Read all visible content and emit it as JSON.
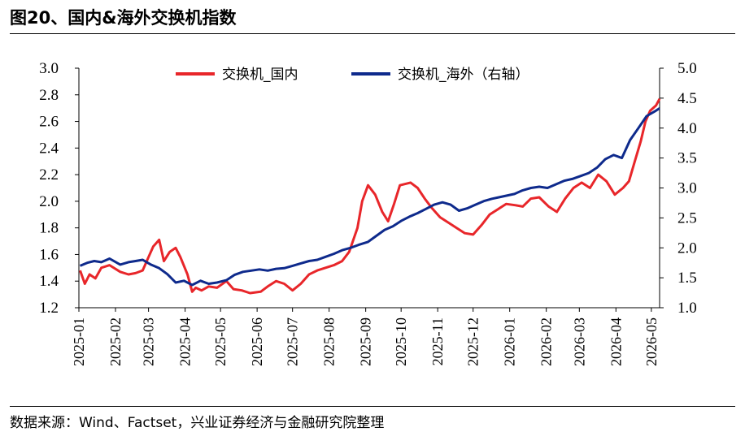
{
  "figure": {
    "title": "图20、国内&海外交换机指数",
    "source": "数据来源：Wind、Factset，兴业证券经济与金融研究院整理"
  },
  "chart_data": {
    "type": "line",
    "x_ticks": [
      "2025-01",
      "2025-02",
      "2025-03",
      "2025-04",
      "2025-05",
      "2025-06",
      "2025-07",
      "2025-08",
      "2025-09",
      "2025-10",
      "2025-11",
      "2025-12",
      "2026-01",
      "2026-02",
      "2026-03",
      "2026-04",
      "2026-05"
    ],
    "x_range": [
      "2025-01-01",
      "2026-05-08"
    ],
    "y_left": {
      "ylim": [
        1.2,
        3.0
      ],
      "ticks": [
        "1.2",
        "1.4",
        "1.6",
        "1.8",
        "2.0",
        "2.2",
        "2.4",
        "2.6",
        "2.8",
        "3.0"
      ]
    },
    "y_right": {
      "ylim": [
        1.0,
        5.0
      ],
      "ticks": [
        "1.0",
        "1.5",
        "2.0",
        "2.5",
        "3.0",
        "3.5",
        "4.0",
        "4.5",
        "5.0"
      ]
    },
    "legend_position": "top",
    "grid": false,
    "series": [
      {
        "name": "交换机_国内",
        "axis": "left",
        "color": "#E8262A",
        "points": [
          [
            "2025-01-02",
            1.48
          ],
          [
            "2025-01-06",
            1.38
          ],
          [
            "2025-01-10",
            1.45
          ],
          [
            "2025-01-15",
            1.42
          ],
          [
            "2025-01-20",
            1.5
          ],
          [
            "2025-01-27",
            1.52
          ],
          [
            "2025-02-05",
            1.47
          ],
          [
            "2025-02-12",
            1.45
          ],
          [
            "2025-02-18",
            1.46
          ],
          [
            "2025-02-24",
            1.48
          ],
          [
            "2025-03-01",
            1.58
          ],
          [
            "2025-03-05",
            1.66
          ],
          [
            "2025-03-10",
            1.71
          ],
          [
            "2025-03-14",
            1.55
          ],
          [
            "2025-03-19",
            1.62
          ],
          [
            "2025-03-24",
            1.65
          ],
          [
            "2025-03-28",
            1.58
          ],
          [
            "2025-04-03",
            1.45
          ],
          [
            "2025-04-07",
            1.32
          ],
          [
            "2025-04-10",
            1.35
          ],
          [
            "2025-04-15",
            1.33
          ],
          [
            "2025-04-21",
            1.36
          ],
          [
            "2025-04-28",
            1.35
          ],
          [
            "2025-05-06",
            1.4
          ],
          [
            "2025-05-12",
            1.34
          ],
          [
            "2025-05-19",
            1.33
          ],
          [
            "2025-05-26",
            1.31
          ],
          [
            "2025-06-04",
            1.32
          ],
          [
            "2025-06-10",
            1.36
          ],
          [
            "2025-06-17",
            1.4
          ],
          [
            "2025-06-24",
            1.38
          ],
          [
            "2025-07-01",
            1.33
          ],
          [
            "2025-07-08",
            1.38
          ],
          [
            "2025-07-15",
            1.45
          ],
          [
            "2025-07-22",
            1.48
          ],
          [
            "2025-07-29",
            1.5
          ],
          [
            "2025-08-05",
            1.52
          ],
          [
            "2025-08-12",
            1.55
          ],
          [
            "2025-08-18",
            1.62
          ],
          [
            "2025-08-25",
            1.8
          ],
          [
            "2025-08-29",
            2.0
          ],
          [
            "2025-09-03",
            2.12
          ],
          [
            "2025-09-09",
            2.05
          ],
          [
            "2025-09-15",
            1.92
          ],
          [
            "2025-09-20",
            1.85
          ],
          [
            "2025-09-25",
            1.98
          ],
          [
            "2025-09-30",
            2.12
          ],
          [
            "2025-10-09",
            2.14
          ],
          [
            "2025-10-15",
            2.1
          ],
          [
            "2025-10-21",
            2.02
          ],
          [
            "2025-10-27",
            1.95
          ],
          [
            "2025-11-03",
            1.88
          ],
          [
            "2025-11-10",
            1.84
          ],
          [
            "2025-11-17",
            1.8
          ],
          [
            "2025-11-24",
            1.76
          ],
          [
            "2025-12-01",
            1.75
          ],
          [
            "2025-12-08",
            1.82
          ],
          [
            "2025-12-15",
            1.9
          ],
          [
            "2025-12-22",
            1.94
          ],
          [
            "2025-12-29",
            1.98
          ],
          [
            "2026-01-06",
            1.97
          ],
          [
            "2026-01-12",
            1.96
          ],
          [
            "2026-01-19",
            2.02
          ],
          [
            "2026-01-26",
            2.03
          ],
          [
            "2026-02-03",
            1.96
          ],
          [
            "2026-02-10",
            1.92
          ],
          [
            "2026-02-17",
            2.02
          ],
          [
            "2026-02-24",
            2.1
          ],
          [
            "2026-03-03",
            2.14
          ],
          [
            "2026-03-10",
            2.1
          ],
          [
            "2026-03-17",
            2.2
          ],
          [
            "2026-03-24",
            2.15
          ],
          [
            "2026-03-31",
            2.05
          ],
          [
            "2026-04-07",
            2.1
          ],
          [
            "2026-04-12",
            2.15
          ],
          [
            "2026-04-17",
            2.3
          ],
          [
            "2026-04-22",
            2.45
          ],
          [
            "2026-04-26",
            2.6
          ],
          [
            "2026-04-30",
            2.68
          ],
          [
            "2026-05-05",
            2.72
          ],
          [
            "2026-05-08",
            2.77
          ]
        ]
      },
      {
        "name": "交换机_海外（右轴）",
        "axis": "right",
        "color": "#0E2A8C",
        "points": [
          [
            "2025-01-02",
            1.7
          ],
          [
            "2025-01-08",
            1.75
          ],
          [
            "2025-01-14",
            1.78
          ],
          [
            "2025-01-20",
            1.76
          ],
          [
            "2025-01-27",
            1.82
          ],
          [
            "2025-02-05",
            1.72
          ],
          [
            "2025-02-12",
            1.76
          ],
          [
            "2025-02-18",
            1.78
          ],
          [
            "2025-02-24",
            1.8
          ],
          [
            "2025-03-03",
            1.72
          ],
          [
            "2025-03-10",
            1.66
          ],
          [
            "2025-03-17",
            1.56
          ],
          [
            "2025-03-24",
            1.42
          ],
          [
            "2025-03-31",
            1.45
          ],
          [
            "2025-04-07",
            1.38
          ],
          [
            "2025-04-14",
            1.45
          ],
          [
            "2025-04-21",
            1.4
          ],
          [
            "2025-04-28",
            1.42
          ],
          [
            "2025-05-06",
            1.46
          ],
          [
            "2025-05-13",
            1.55
          ],
          [
            "2025-05-20",
            1.6
          ],
          [
            "2025-05-27",
            1.62
          ],
          [
            "2025-06-03",
            1.64
          ],
          [
            "2025-06-10",
            1.62
          ],
          [
            "2025-06-17",
            1.65
          ],
          [
            "2025-06-24",
            1.66
          ],
          [
            "2025-07-01",
            1.7
          ],
          [
            "2025-07-08",
            1.74
          ],
          [
            "2025-07-15",
            1.78
          ],
          [
            "2025-07-22",
            1.8
          ],
          [
            "2025-07-29",
            1.85
          ],
          [
            "2025-08-05",
            1.9
          ],
          [
            "2025-08-12",
            1.96
          ],
          [
            "2025-08-19",
            2.0
          ],
          [
            "2025-08-26",
            2.05
          ],
          [
            "2025-09-03",
            2.1
          ],
          [
            "2025-09-10",
            2.2
          ],
          [
            "2025-09-17",
            2.3
          ],
          [
            "2025-09-24",
            2.36
          ],
          [
            "2025-10-01",
            2.45
          ],
          [
            "2025-10-08",
            2.52
          ],
          [
            "2025-10-15",
            2.58
          ],
          [
            "2025-10-22",
            2.65
          ],
          [
            "2025-10-29",
            2.72
          ],
          [
            "2025-11-05",
            2.76
          ],
          [
            "2025-11-12",
            2.72
          ],
          [
            "2025-11-19",
            2.62
          ],
          [
            "2025-11-26",
            2.66
          ],
          [
            "2025-12-03",
            2.72
          ],
          [
            "2025-12-10",
            2.78
          ],
          [
            "2025-12-17",
            2.82
          ],
          [
            "2025-12-24",
            2.85
          ],
          [
            "2026-01-05",
            2.9
          ],
          [
            "2026-01-12",
            2.96
          ],
          [
            "2026-01-19",
            3.0
          ],
          [
            "2026-01-26",
            3.02
          ],
          [
            "2026-02-02",
            3.0
          ],
          [
            "2026-02-09",
            3.06
          ],
          [
            "2026-02-16",
            3.12
          ],
          [
            "2026-02-23",
            3.15
          ],
          [
            "2026-03-02",
            3.2
          ],
          [
            "2026-03-09",
            3.25
          ],
          [
            "2026-03-16",
            3.34
          ],
          [
            "2026-03-23",
            3.48
          ],
          [
            "2026-03-30",
            3.55
          ],
          [
            "2026-04-06",
            3.5
          ],
          [
            "2026-04-13",
            3.8
          ],
          [
            "2026-04-20",
            4.0
          ],
          [
            "2026-04-27",
            4.2
          ],
          [
            "2026-05-04",
            4.28
          ],
          [
            "2026-05-08",
            4.33
          ]
        ]
      }
    ]
  }
}
